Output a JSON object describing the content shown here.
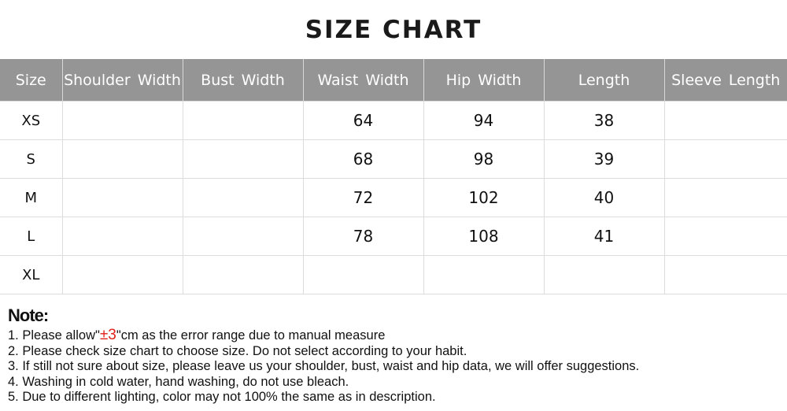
{
  "title": "SIZE CHART",
  "table": {
    "headers": [
      "Size",
      "Shoulder Width",
      "Bust Width",
      "Waist Width",
      "Hip Width",
      "Length",
      "Sleeve Length"
    ],
    "rows": [
      [
        "XS",
        "",
        "",
        "64",
        "94",
        "38",
        ""
      ],
      [
        "S",
        "",
        "",
        "68",
        "98",
        "39",
        ""
      ],
      [
        "M",
        "",
        "",
        "72",
        "102",
        "40",
        ""
      ],
      [
        "L",
        "",
        "",
        "78",
        "108",
        "41",
        ""
      ],
      [
        "XL",
        "",
        "",
        "",
        "",
        "",
        ""
      ]
    ]
  },
  "notes": {
    "heading": "Note:",
    "note1_prefix": "1. Please allow\"",
    "note1_highlight": "±3",
    "note1_suffix": "\"cm as the error range due to manual measure",
    "items": [
      "2. Please check size chart to choose size. Do not select according to your habit.",
      "3. If still not sure about size, please leave us your shoulder, bust, waist and hip data, we will offer suggestions.",
      "4. Washing in cold water, hand washing, do not use bleach.",
      "5. Due to different lighting, color may not 100% the same as in description."
    ],
    "highlight_color": "#e0201b"
  },
  "colors": {
    "header_bg": "#959595",
    "header_text": "#ffffff"
  }
}
